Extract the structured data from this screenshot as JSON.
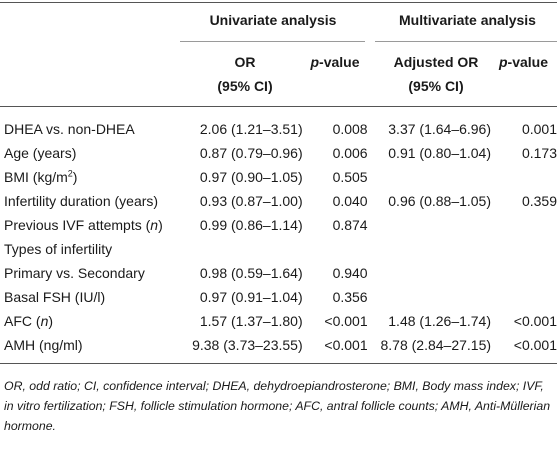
{
  "header": {
    "univariate": "Univariate analysis",
    "multivariate": "Multivariate analysis",
    "or_line1": "OR",
    "or_line2": "(95% CI)",
    "pvalue_italic": "p",
    "pvalue_rest": "-value",
    "adj_or_line1": "Adjusted OR",
    "adj_or_line2": "(95% CI)"
  },
  "rows": [
    {
      "label": "DHEA vs. non-DHEA",
      "or": "2.06 (1.21–3.51)",
      "p": "0.008",
      "aor": "3.37 (1.64–6.96)",
      "ap": "0.001"
    },
    {
      "label": "Age (years)",
      "or": "0.87 (0.79–0.96)",
      "p": "0.006",
      "aor": "0.91 (0.80–1.04)",
      "ap": "0.173"
    },
    {
      "label_pre": "BMI (kg/m",
      "label_sup": "2",
      "label_post": ")",
      "or": "0.97 (0.90–1.05)",
      "p": "0.505",
      "aor": "",
      "ap": ""
    },
    {
      "label": "Infertility duration (years)",
      "or": "0.93 (0.87–1.00)",
      "p": "0.040",
      "aor": "0.96 (0.88–1.05)",
      "ap": "0.359"
    },
    {
      "label_pre": "Previous IVF attempts (",
      "label_it": "n",
      "label_post": ")",
      "or": "0.99 (0.86–1.14)",
      "p": "0.874",
      "aor": "",
      "ap": ""
    },
    {
      "label": "Types of infertility",
      "or": "",
      "p": "",
      "aor": "",
      "ap": ""
    },
    {
      "label": "Primary vs. Secondary",
      "or": "0.98 (0.59–1.64)",
      "p": "0.940",
      "aor": "",
      "ap": ""
    },
    {
      "label": "Basal FSH (IU/l)",
      "or": "0.97 (0.91–1.04)",
      "p": "0.356",
      "aor": "",
      "ap": ""
    },
    {
      "label_pre": "AFC (",
      "label_it": "n",
      "label_post": ")",
      "or": "1.57 (1.37–1.80)",
      "p": "<0.001",
      "aor": "1.48 (1.26–1.74)",
      "ap": "<0.001"
    },
    {
      "label": "AMH (ng/ml)",
      "or": "9.38 (3.73–23.55)",
      "p": "<0.001",
      "aor": "8.78 (2.84–27.15)",
      "ap": "<0.001"
    }
  ],
  "footnote": "OR, odd ratio; CI, confidence interval; DHEA, dehydroepiandrosterone; BMI, Body mass index; IVF, in vitro fertilization; FSH, follicle stimulation hormone; AFC, antral follicle counts; AMH, Anti-Müllerian hormone."
}
